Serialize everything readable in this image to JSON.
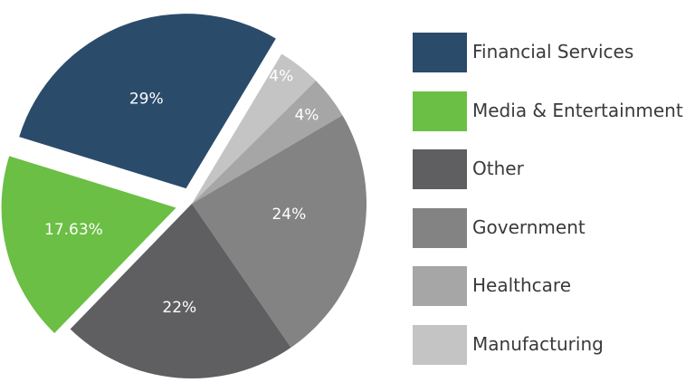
{
  "chart_data": {
    "type": "pie",
    "title": "",
    "slices": [
      {
        "label": "Financial Services",
        "value": 29,
        "value_label": "29%",
        "color": "#2b4b6b",
        "exploded": true
      },
      {
        "label": "Manufacturing",
        "value": 4,
        "value_label": "4%",
        "color": "#c4c4c4",
        "exploded": false
      },
      {
        "label": "Healthcare",
        "value": 4,
        "value_label": "4%",
        "color": "#a6a6a6",
        "exploded": false
      },
      {
        "label": "Government",
        "value": 24,
        "value_label": "24%",
        "color": "#838383",
        "exploded": false
      },
      {
        "label": "Other",
        "value": 22,
        "value_label": "22%",
        "color": "#5f5f61",
        "exploded": false
      },
      {
        "label": "Media & Entertainment",
        "value": 17.63,
        "value_label": "17.63%",
        "color": "#6bbf44",
        "exploded": true
      }
    ],
    "legend": {
      "position": "right",
      "items": [
        {
          "label": "Financial Services",
          "color": "#2b4b6b"
        },
        {
          "label": "Media & Entertainment",
          "color": "#6bbf44"
        },
        {
          "label": "Other",
          "color": "#5f5f61"
        },
        {
          "label": "Government",
          "color": "#838383"
        },
        {
          "label": "Healthcare",
          "color": "#a6a6a6"
        },
        {
          "label": "Manufacturing",
          "color": "#c4c4c4"
        }
      ]
    }
  }
}
